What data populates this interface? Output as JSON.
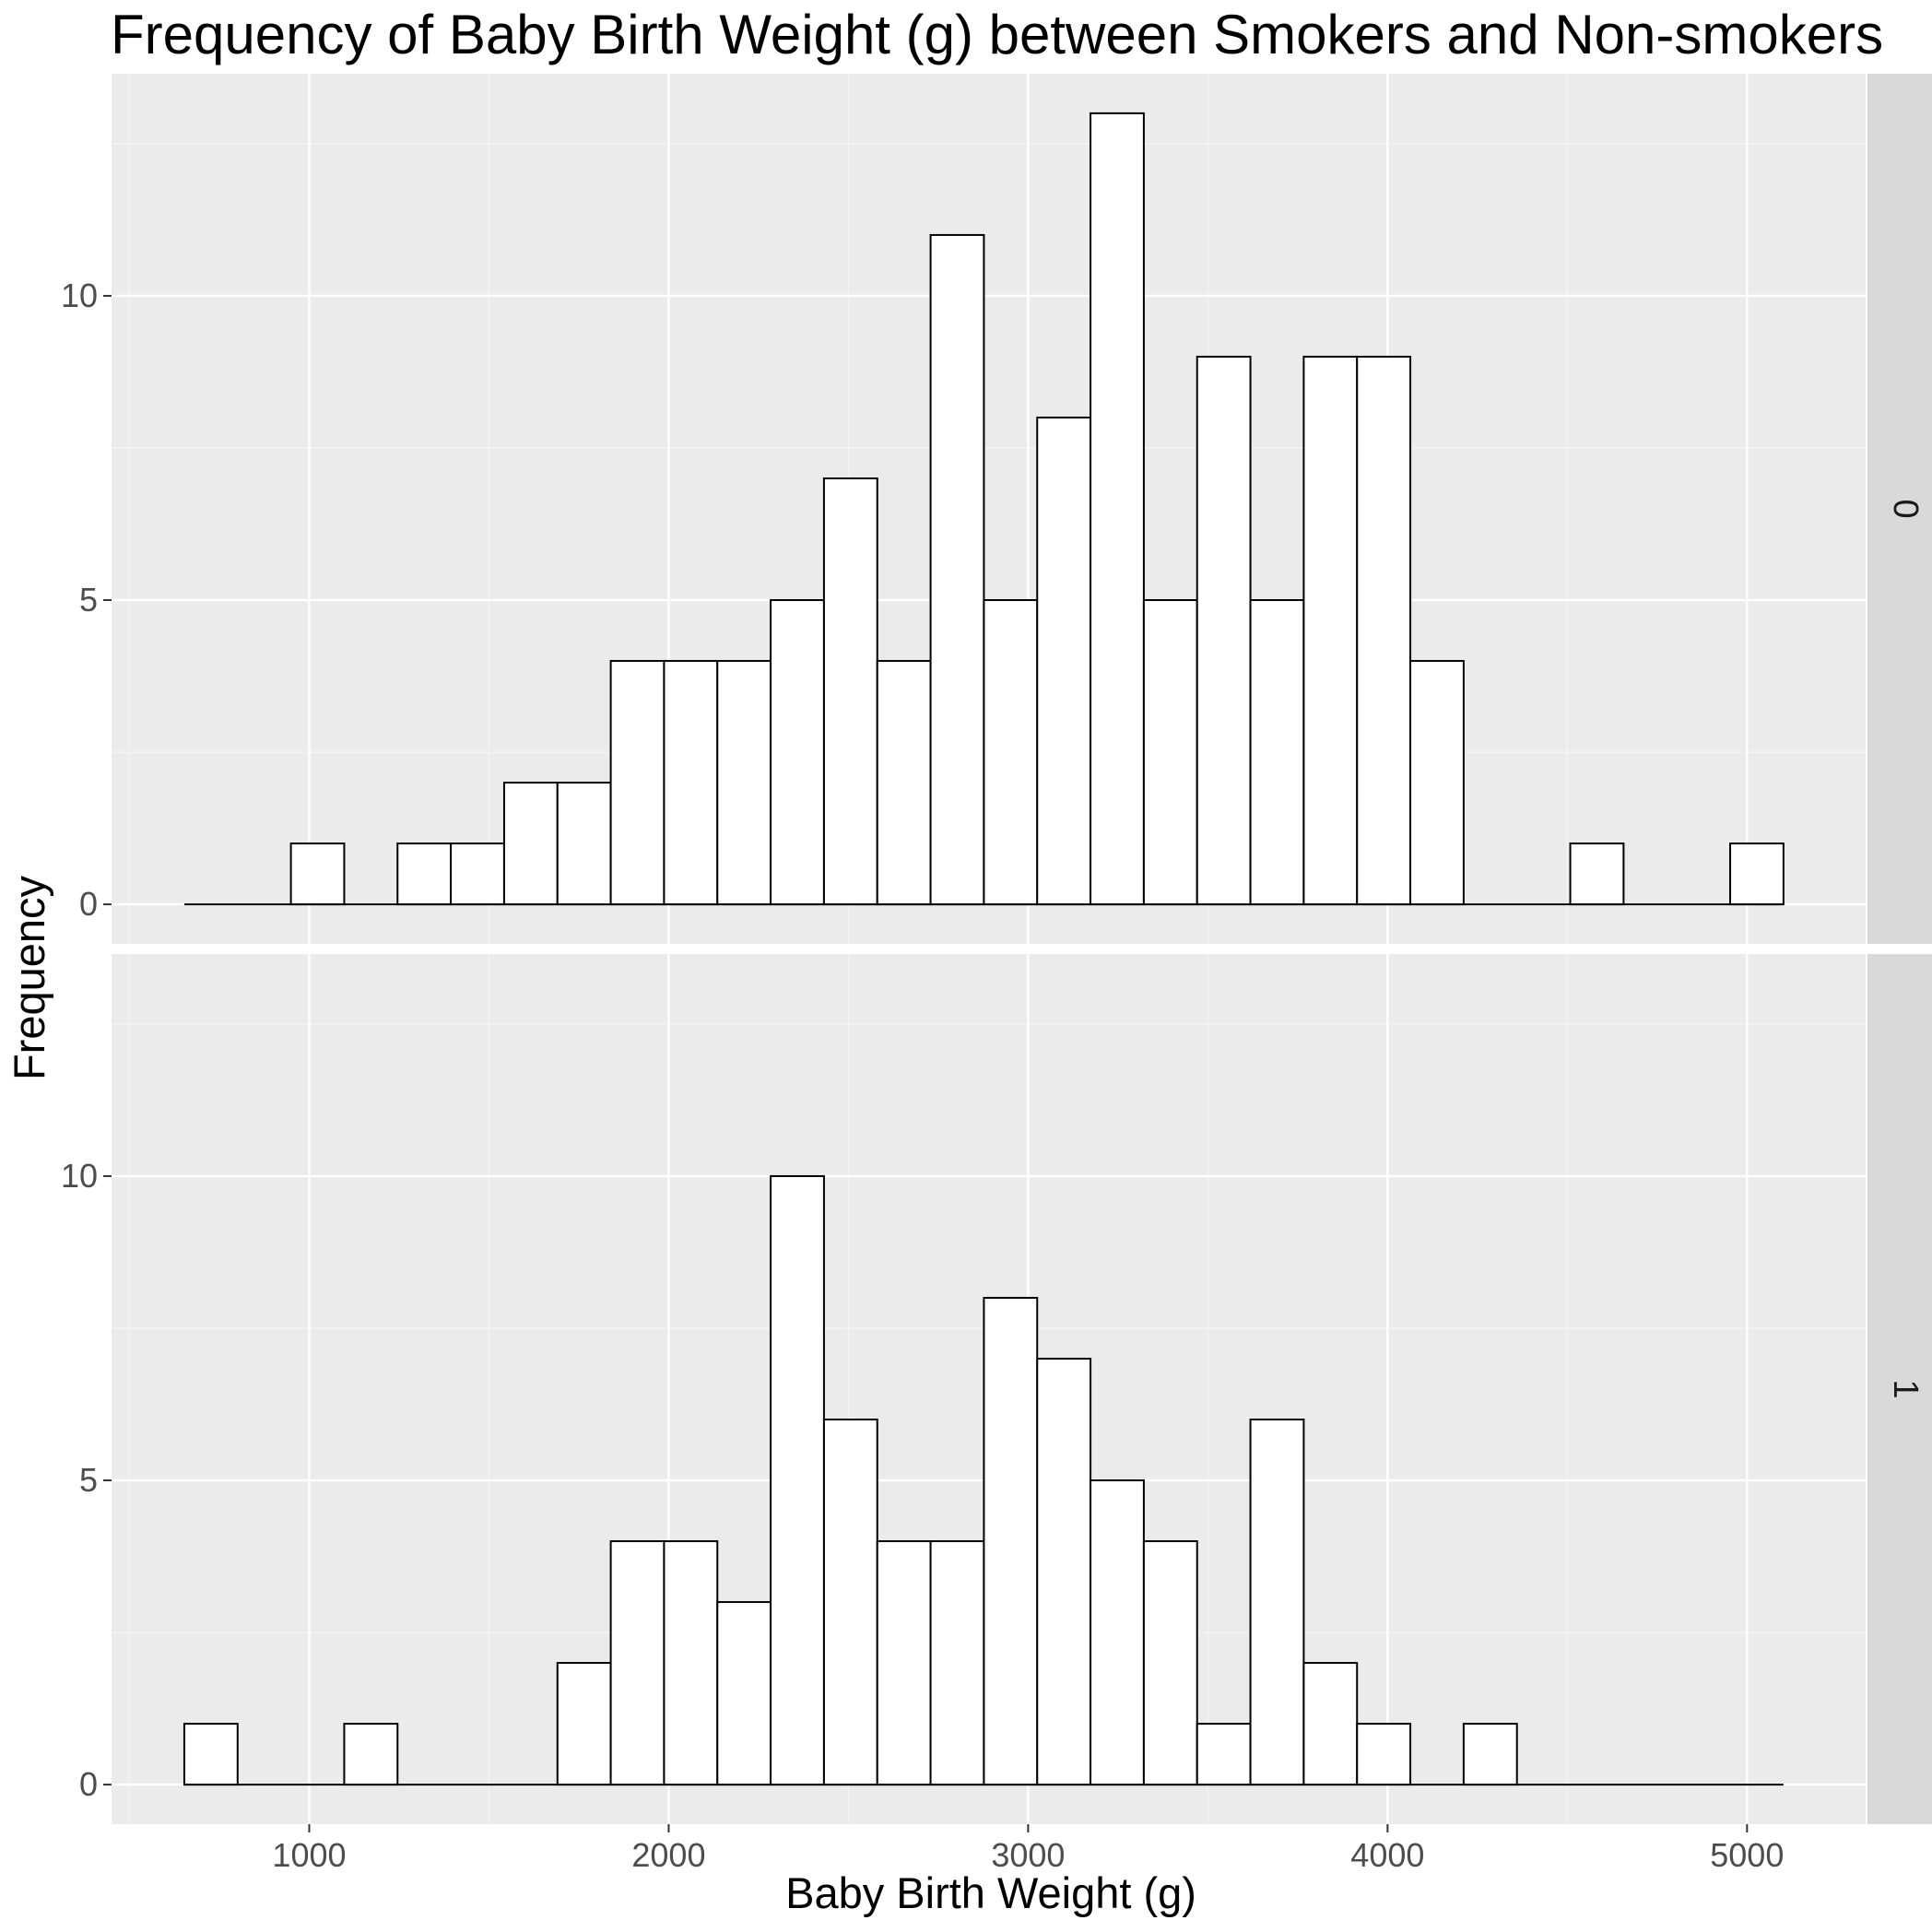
{
  "chart_data": {
    "type": "bar",
    "title": "Frequency of Baby Birth Weight (g) between Smokers and Non-smokers",
    "xlabel": "Baby Birth Weight (g)",
    "ylabel": "Frequency",
    "xlim": [
      450,
      5330
    ],
    "ylim": [
      -0.65,
      13.65
    ],
    "x_ticks": [
      1000,
      2000,
      3000,
      4000,
      5000
    ],
    "x_tick_labels": [
      "1000",
      "2000",
      "3000",
      "4000",
      "5000"
    ],
    "y_ticks": [
      0,
      5,
      10
    ],
    "y_tick_labels": [
      "0",
      "5",
      "10"
    ],
    "grid": true,
    "bin_width": 148.3,
    "bin_centers": [
      726.6,
      874.9,
      1023.2,
      1171.5,
      1319.8,
      1468.1,
      1616.4,
      1764.7,
      1913.0,
      2061.3,
      2209.6,
      2357.9,
      2506.2,
      2654.5,
      2802.8,
      2951.1,
      3099.4,
      3247.7,
      3396.0,
      3544.3,
      3692.6,
      3840.9,
      3989.2,
      4137.5,
      4285.8,
      4434.1,
      4582.4,
      4730.7,
      4879.0,
      5027.3
    ],
    "series": [
      {
        "name": "0",
        "values": [
          0,
          0,
          1,
          0,
          1,
          1,
          2,
          2,
          4,
          4,
          4,
          5,
          7,
          4,
          11,
          5,
          8,
          13,
          5,
          9,
          5,
          9,
          9,
          4,
          0,
          0,
          1,
          0,
          0,
          1
        ]
      },
      {
        "name": "1",
        "values": [
          1,
          0,
          0,
          1,
          0,
          0,
          0,
          2,
          4,
          4,
          3,
          10,
          6,
          4,
          4,
          8,
          7,
          5,
          4,
          1,
          6,
          2,
          1,
          0,
          1,
          0,
          0,
          0,
          0,
          0
        ]
      }
    ],
    "colors": {
      "panel_background": "#ebebeb",
      "grid_major": "#ffffff",
      "bar_fill": "#ffffff",
      "bar_outline": "#000000",
      "strip_background": "#d9d9d9",
      "tick_text": "#4d4d4d"
    }
  }
}
